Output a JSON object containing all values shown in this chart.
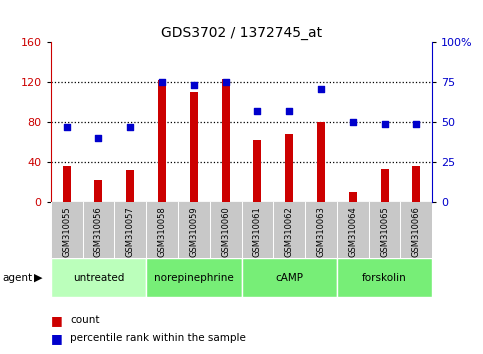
{
  "title": "GDS3702 / 1372745_at",
  "samples": [
    "GSM310055",
    "GSM310056",
    "GSM310057",
    "GSM310058",
    "GSM310059",
    "GSM310060",
    "GSM310061",
    "GSM310062",
    "GSM310063",
    "GSM310064",
    "GSM310065",
    "GSM310066"
  ],
  "count": [
    36,
    22,
    32,
    122,
    110,
    123,
    62,
    68,
    80,
    10,
    33,
    36
  ],
  "percentile": [
    47,
    40,
    47,
    75,
    73,
    75,
    57,
    57,
    71,
    50,
    49,
    49
  ],
  "agents": [
    {
      "label": "untreated",
      "start": 0,
      "end": 3,
      "color": "#bbffbb"
    },
    {
      "label": "norepinephrine",
      "start": 3,
      "end": 6,
      "color": "#77ee77"
    },
    {
      "label": "cAMP",
      "start": 6,
      "end": 9,
      "color": "#77ee77"
    },
    {
      "label": "forskolin",
      "start": 9,
      "end": 12,
      "color": "#77ee77"
    }
  ],
  "left_ylim": [
    0,
    160
  ],
  "right_ylim": [
    0,
    100
  ],
  "left_yticks": [
    0,
    40,
    80,
    120,
    160
  ],
  "right_yticks": [
    0,
    25,
    50,
    75,
    100
  ],
  "right_yticklabels": [
    "0",
    "25",
    "50",
    "75",
    "100%"
  ],
  "bar_color": "#cc0000",
  "dot_color": "#0000cc",
  "tick_bg": "#c8c8c8",
  "agent_bg": "#88ee88",
  "figsize": [
    4.83,
    3.54
  ],
  "dpi": 100
}
